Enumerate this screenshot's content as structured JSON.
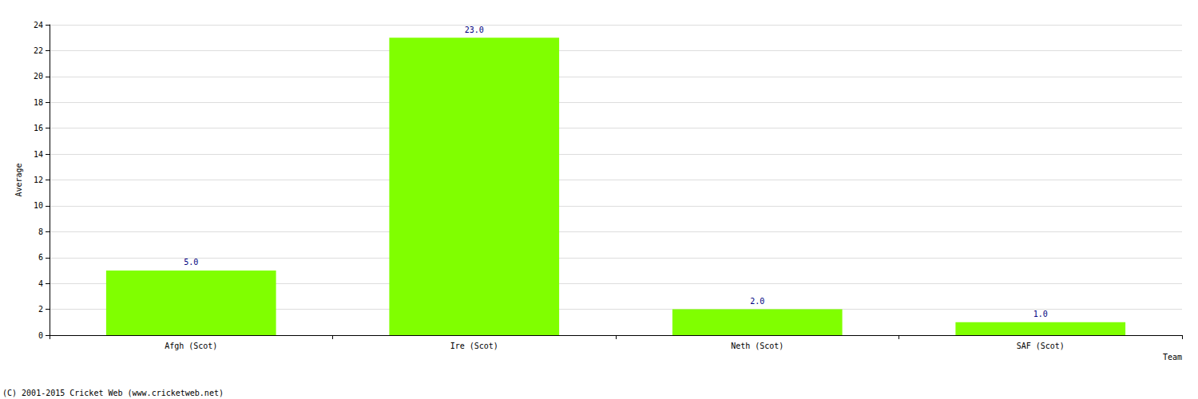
{
  "chart_data": {
    "type": "bar",
    "categories": [
      "Afgh (Scot)",
      "Ire (Scot)",
      "Neth (Scot)",
      "SAF (Scot)"
    ],
    "values": [
      5,
      23,
      2,
      1
    ],
    "value_labels": [
      "5.0",
      "23.0",
      "2.0",
      "1.0"
    ],
    "data_labels": true,
    "color": "#80ff00",
    "x_label": "Team",
    "y_label": "Average",
    "ylim": [
      0,
      24
    ],
    "yticks": [
      0,
      2,
      4,
      6,
      8,
      10,
      12,
      14,
      16,
      18,
      20,
      22,
      24
    ],
    "grid": true,
    "annotations": [
      "(C) 2001-2015 Cricket Web (www.cricketweb.net)"
    ]
  }
}
